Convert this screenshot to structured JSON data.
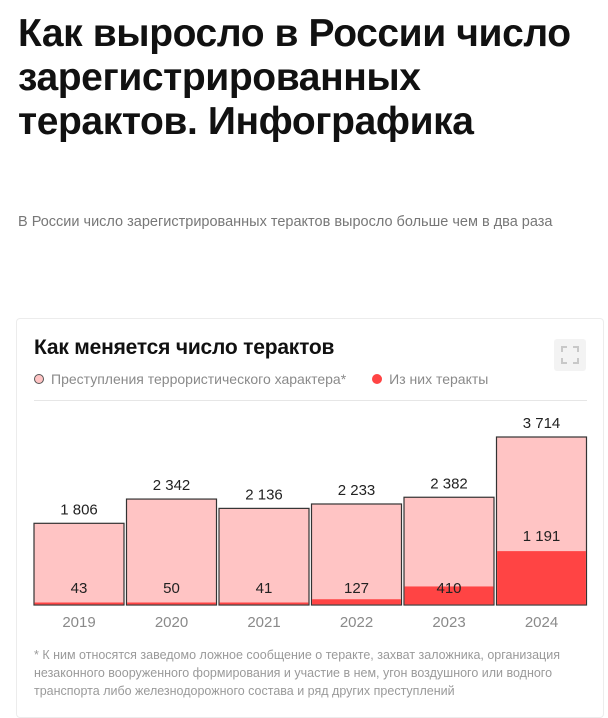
{
  "article": {
    "title": "Как выросло в России число зарегистрированных терактов. Инфографика",
    "lead": "В России число зарегистрированных терактов выросло больше чем в два раза"
  },
  "chart_data": {
    "type": "bar",
    "title": "Как меняется число терактов",
    "categories": [
      "2019",
      "2020",
      "2021",
      "2022",
      "2023",
      "2024"
    ],
    "series": [
      {
        "name": "Преступления террористического характера*",
        "values": [
          1806,
          2342,
          2136,
          2233,
          2382,
          3714
        ],
        "color": "#ffc4c4"
      },
      {
        "name": "Из них теракты",
        "values": [
          43,
          50,
          41,
          127,
          410,
          1191
        ],
        "color": "#ff4444"
      }
    ],
    "total_labels": [
      "1 806",
      "2 342",
      "2 136",
      "2 233",
      "2 382",
      "3 714"
    ],
    "sub_labels": [
      "43",
      "50",
      "41",
      "127",
      "410",
      "1 191"
    ],
    "ylim": [
      0,
      3714
    ],
    "grid": false,
    "legend_position": "top-left",
    "footnote": "* К ним относятся заведомо ложное сообщение о теракте, захват заложника, организация незаконного вооруженного формирования и участие в нем, угон воздушного или водного транспорта либо железнодорожного состава и ряд других преступлений"
  },
  "ui": {
    "expand_icon": "expand-icon",
    "text_color": "#222222",
    "axis_label_color": "#8a8a8a"
  }
}
